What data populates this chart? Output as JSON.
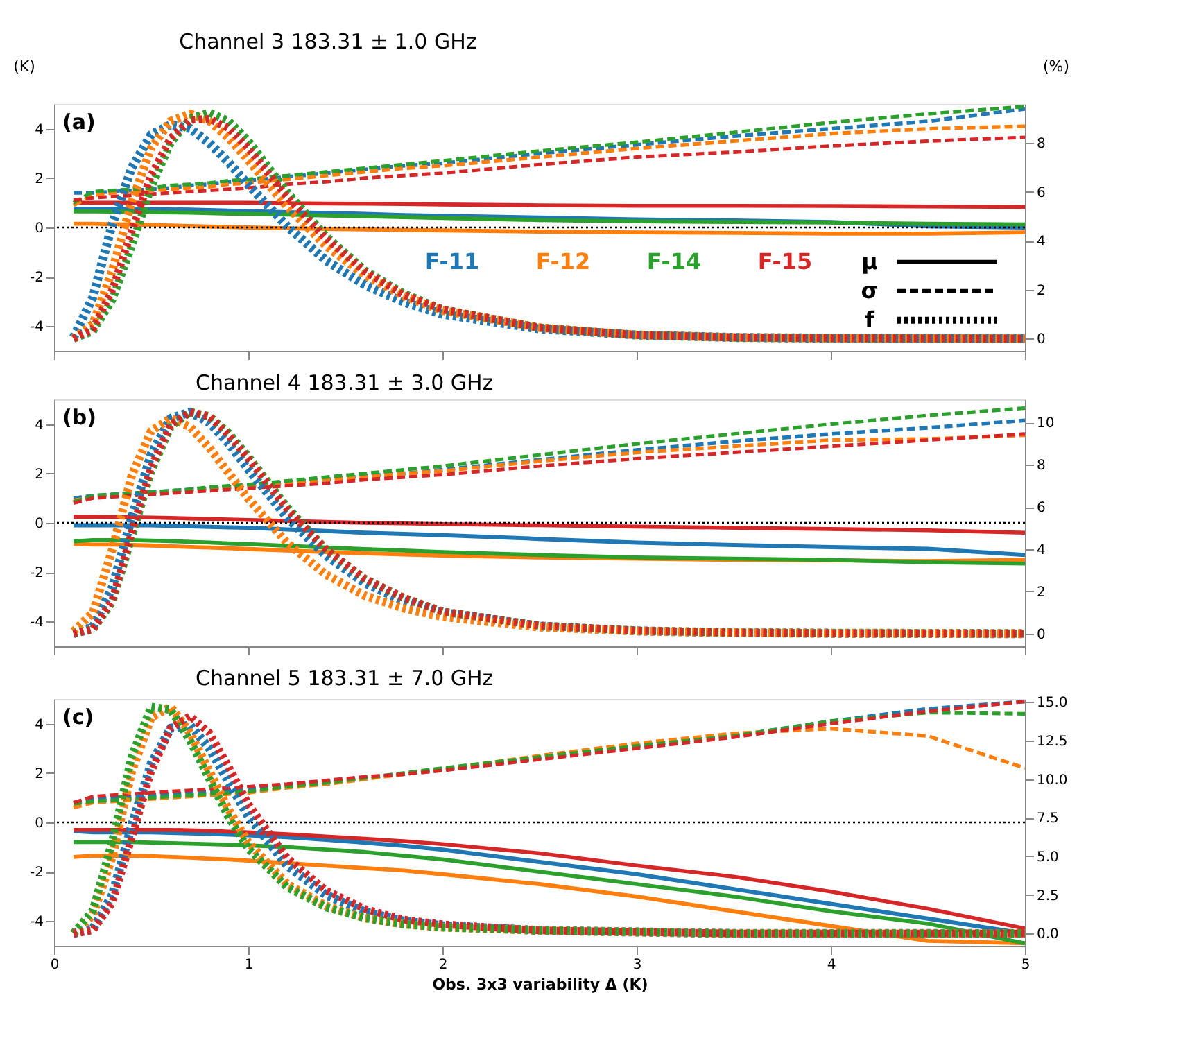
{
  "chart_data": [
    {
      "type": "line",
      "title": "Channel 3   183.31 ± 1.0 GHz",
      "ylabel": "(K)",
      "y2label": "(%)",
      "annotations": [
        "(a)",
        "μ",
        "σ",
        "f"
      ],
      "legend": "right",
      "tick_labels": "y",
      "x": [
        0.1,
        0.2,
        0.3,
        0.4,
        0.5,
        0.6,
        0.7,
        0.8,
        0.9,
        1.0,
        1.2,
        1.4,
        1.6,
        1.8,
        2.0,
        2.5,
        3.0,
        3.5,
        4.0,
        4.5,
        5.0
      ],
      "xlim": [
        0,
        5
      ],
      "xticks": [
        0,
        1,
        2,
        3,
        4,
        5
      ],
      "ylim": [
        -5,
        5
      ],
      "yticks": [
        -4,
        -2,
        0,
        2,
        4
      ],
      "y2lim": [
        -0.5,
        9.6
      ],
      "y2ticks": [
        0,
        2,
        4,
        6,
        8
      ],
      "ref_lines": [
        {
          "axis": "y",
          "value": 0,
          "color": "#000000",
          "line_style": "dotted"
        }
      ],
      "series": [
        {
          "name": "F-11",
          "color": "#1f77b4",
          "line_style": "solid",
          "values": [
            0.75,
            0.75,
            0.75,
            0.75,
            0.74,
            0.73,
            0.72,
            0.7,
            0.68,
            0.66,
            0.62,
            0.58,
            0.55,
            0.5,
            0.47,
            0.4,
            0.32,
            0.28,
            0.22,
            0.05,
            0.0
          ]
        },
        {
          "name": "F-12",
          "color": "#ff7f0e",
          "line_style": "solid",
          "values": [
            0.15,
            0.15,
            0.13,
            0.12,
            0.1,
            0.08,
            0.06,
            0.04,
            0.02,
            0,
            -0.03,
            -0.06,
            -0.08,
            -0.1,
            -0.12,
            -0.17,
            -0.2,
            -0.22,
            -0.25,
            -0.25,
            -0.2
          ]
        },
        {
          "name": "F-14",
          "color": "#2ca02c",
          "line_style": "solid",
          "values": [
            0.65,
            0.65,
            0.64,
            0.63,
            0.62,
            0.61,
            0.6,
            0.58,
            0.56,
            0.55,
            0.52,
            0.48,
            0.45,
            0.42,
            0.38,
            0.3,
            0.25,
            0.22,
            0.2,
            0.15,
            0.12
          ]
        },
        {
          "name": "F-15",
          "color": "#d62728",
          "line_style": "solid",
          "values": [
            1.0,
            1.0,
            1.0,
            1.0,
            1.0,
            1.0,
            1.0,
            1.0,
            1.0,
            1.0,
            0.98,
            0.97,
            0.96,
            0.95,
            0.93,
            0.9,
            0.88,
            0.88,
            0.87,
            0.85,
            0.83
          ]
        },
        {
          "color": "#1f77b4",
          "line_style": "dashed",
          "values": [
            1.4,
            1.4,
            1.45,
            1.5,
            1.55,
            1.6,
            1.7,
            1.75,
            1.85,
            1.9,
            2.05,
            2.2,
            2.35,
            2.5,
            2.6,
            3.0,
            3.35,
            3.7,
            4.0,
            4.3,
            4.8
          ]
        },
        {
          "color": "#ff7f0e",
          "line_style": "dashed",
          "values": [
            0.9,
            1.3,
            1.4,
            1.45,
            1.5,
            1.55,
            1.6,
            1.65,
            1.75,
            1.8,
            1.95,
            2.1,
            2.25,
            2.4,
            2.5,
            2.85,
            3.2,
            3.5,
            3.8,
            4.0,
            4.1
          ]
        },
        {
          "color": "#2ca02c",
          "line_style": "dashed",
          "values": [
            1.0,
            1.45,
            1.5,
            1.55,
            1.6,
            1.7,
            1.75,
            1.8,
            1.9,
            1.95,
            2.1,
            2.25,
            2.4,
            2.55,
            2.7,
            3.1,
            3.45,
            3.85,
            4.25,
            4.6,
            4.9
          ]
        },
        {
          "color": "#d62728",
          "line_style": "dashed",
          "values": [
            1.1,
            1.2,
            1.25,
            1.3,
            1.35,
            1.4,
            1.45,
            1.5,
            1.55,
            1.6,
            1.75,
            1.85,
            2.0,
            2.1,
            2.2,
            2.55,
            2.85,
            3.05,
            3.3,
            3.5,
            3.65
          ]
        },
        {
          "color": "#1f77b4",
          "line_style": "dotted",
          "axis": "y2",
          "values": [
            0.05,
            1.7,
            4.7,
            7.0,
            8.35,
            8.75,
            8.6,
            8.0,
            7.2,
            6.3,
            4.6,
            3.2,
            2.2,
            1.5,
            1.0,
            0.4,
            0.15,
            0.05,
            0.02,
            0.01,
            0
          ]
        },
        {
          "color": "#ff7f0e",
          "line_style": "dotted",
          "axis": "y2",
          "values": [
            0,
            0.6,
            2.8,
            5.6,
            7.8,
            8.9,
            9.2,
            8.9,
            8.2,
            7.3,
            5.4,
            3.8,
            2.6,
            1.75,
            1.15,
            0.45,
            0.15,
            0.05,
            0.02,
            0.01,
            0
          ]
        },
        {
          "color": "#2ca02c",
          "line_style": "dotted",
          "axis": "y2",
          "values": [
            0,
            0.3,
            1.6,
            3.8,
            6.2,
            8.0,
            9.0,
            9.25,
            8.9,
            8.1,
            6.0,
            4.2,
            2.8,
            1.85,
            1.2,
            0.45,
            0.15,
            0.05,
            0.02,
            0.01,
            0
          ]
        },
        {
          "color": "#d62728",
          "line_style": "dotted",
          "axis": "y2",
          "values": [
            0,
            0.4,
            2.0,
            4.4,
            6.7,
            8.2,
            8.95,
            9.0,
            8.6,
            7.8,
            5.8,
            4.1,
            2.75,
            1.8,
            1.2,
            0.45,
            0.15,
            0.05,
            0.02,
            0.01,
            0
          ]
        }
      ]
    },
    {
      "type": "line",
      "title": "Channel 4   183.31 ± 3.0 GHz",
      "annotations": [
        "(b)"
      ],
      "tick_labels": "y",
      "x": [
        0.1,
        0.2,
        0.3,
        0.4,
        0.5,
        0.6,
        0.7,
        0.8,
        0.9,
        1.0,
        1.2,
        1.4,
        1.6,
        1.8,
        2.0,
        2.5,
        3.0,
        3.5,
        4.0,
        4.5,
        5.0
      ],
      "xlim": [
        0,
        5
      ],
      "xticks": [
        0,
        1,
        2,
        3,
        4,
        5
      ],
      "ylim": [
        -5,
        5
      ],
      "yticks": [
        -4,
        -2,
        0,
        2,
        4
      ],
      "y2lim": [
        -0.6,
        11.1
      ],
      "y2ticks": [
        0,
        2,
        4,
        6,
        8,
        10
      ],
      "ref_lines": [
        {
          "axis": "y",
          "value": 0,
          "color": "#000000",
          "line_style": "dotted"
        }
      ],
      "series": [
        {
          "color": "#1f77b4",
          "line_style": "solid",
          "values": [
            -0.1,
            -0.1,
            -0.1,
            -0.1,
            -0.1,
            -0.12,
            -0.14,
            -0.16,
            -0.18,
            -0.2,
            -0.27,
            -0.33,
            -0.4,
            -0.45,
            -0.5,
            -0.65,
            -0.8,
            -0.9,
            -0.98,
            -1.05,
            -1.3
          ]
        },
        {
          "color": "#ff7f0e",
          "line_style": "solid",
          "values": [
            -0.85,
            -0.88,
            -0.88,
            -0.9,
            -0.92,
            -0.95,
            -0.98,
            -1.0,
            -1.03,
            -1.06,
            -1.12,
            -1.18,
            -1.23,
            -1.28,
            -1.32,
            -1.4,
            -1.45,
            -1.5,
            -1.52,
            -1.55,
            -1.5
          ]
        },
        {
          "color": "#2ca02c",
          "line_style": "solid",
          "values": [
            -0.75,
            -0.7,
            -0.7,
            -0.7,
            -0.72,
            -0.74,
            -0.77,
            -0.8,
            -0.83,
            -0.86,
            -0.93,
            -1.0,
            -1.06,
            -1.12,
            -1.18,
            -1.3,
            -1.4,
            -1.45,
            -1.5,
            -1.6,
            -1.65
          ]
        },
        {
          "color": "#d62728",
          "line_style": "solid",
          "values": [
            0.25,
            0.25,
            0.24,
            0.23,
            0.22,
            0.2,
            0.18,
            0.16,
            0.14,
            0.12,
            0.08,
            0.04,
            0,
            -0.02,
            -0.05,
            -0.1,
            -0.15,
            -0.2,
            -0.25,
            -0.3,
            -0.4
          ]
        },
        {
          "color": "#1f77b4",
          "line_style": "dashed",
          "values": [
            1.0,
            1.1,
            1.15,
            1.2,
            1.25,
            1.3,
            1.35,
            1.4,
            1.45,
            1.5,
            1.65,
            1.75,
            1.9,
            2.0,
            2.15,
            2.55,
            2.95,
            3.3,
            3.6,
            3.85,
            4.15
          ]
        },
        {
          "color": "#ff7f0e",
          "line_style": "dashed",
          "values": [
            0.9,
            1.05,
            1.1,
            1.15,
            1.2,
            1.25,
            1.3,
            1.35,
            1.4,
            1.45,
            1.6,
            1.75,
            1.85,
            2.0,
            2.1,
            2.5,
            2.85,
            3.1,
            3.35,
            3.4,
            3.55
          ]
        },
        {
          "color": "#2ca02c",
          "line_style": "dashed",
          "values": [
            0.85,
            1.1,
            1.15,
            1.2,
            1.25,
            1.3,
            1.35,
            1.45,
            1.5,
            1.55,
            1.7,
            1.85,
            2.0,
            2.15,
            2.3,
            2.75,
            3.2,
            3.6,
            4.0,
            4.35,
            4.65
          ]
        },
        {
          "color": "#d62728",
          "line_style": "dashed",
          "values": [
            0.8,
            1.0,
            1.05,
            1.1,
            1.15,
            1.2,
            1.25,
            1.3,
            1.35,
            1.4,
            1.5,
            1.6,
            1.75,
            1.85,
            1.95,
            2.3,
            2.6,
            2.85,
            3.1,
            3.35,
            3.6
          ]
        },
        {
          "color": "#1f77b4",
          "line_style": "dotted",
          "axis": "y2",
          "values": [
            0,
            0.3,
            2.2,
            5.5,
            8.5,
            10.2,
            10.5,
            10.0,
            9.0,
            7.8,
            5.5,
            3.7,
            2.4,
            1.55,
            1.0,
            0.35,
            0.13,
            0.05,
            0.02,
            0.01,
            0
          ]
        },
        {
          "color": "#ff7f0e",
          "line_style": "dotted",
          "axis": "y2",
          "values": [
            0.1,
            1.0,
            4.0,
            7.5,
            9.6,
            10.2,
            9.8,
            8.8,
            7.6,
            6.4,
            4.3,
            2.8,
            1.8,
            1.2,
            0.8,
            0.3,
            0.12,
            0.05,
            0.02,
            0.01,
            0
          ]
        },
        {
          "color": "#2ca02c",
          "line_style": "dotted",
          "axis": "y2",
          "values": [
            0,
            0.2,
            1.5,
            4.6,
            7.7,
            9.8,
            10.5,
            10.3,
            9.5,
            8.4,
            6.0,
            4.0,
            2.6,
            1.7,
            1.05,
            0.38,
            0.14,
            0.05,
            0.02,
            0.01,
            0
          ]
        },
        {
          "color": "#d62728",
          "line_style": "dotted",
          "axis": "y2",
          "values": [
            0,
            0.2,
            1.6,
            4.8,
            7.9,
            9.9,
            10.5,
            10.3,
            9.4,
            8.3,
            5.9,
            4.0,
            2.6,
            1.7,
            1.05,
            0.38,
            0.14,
            0.05,
            0.02,
            0.01,
            0
          ]
        }
      ]
    },
    {
      "type": "line",
      "title": "Channel 5   183.31 ± 7.0 GHz",
      "xlabel": "Obs. 3x3 variability Δ (K)",
      "annotations": [
        "(c)"
      ],
      "x": [
        0.1,
        0.2,
        0.3,
        0.4,
        0.5,
        0.6,
        0.7,
        0.8,
        0.9,
        1.0,
        1.2,
        1.4,
        1.6,
        1.8,
        2.0,
        2.5,
        3.0,
        3.5,
        4.0,
        4.5,
        5.0
      ],
      "xlim": [
        0,
        5
      ],
      "xticks": [
        0,
        1,
        2,
        3,
        4,
        5
      ],
      "ylim": [
        -5,
        5
      ],
      "yticks": [
        -4,
        -2,
        0,
        2,
        4
      ],
      "y2lim": [
        -0.8,
        15.2
      ],
      "y2ticks": [
        {
          "value": 0,
          "label": "0.0"
        },
        {
          "value": 2.5,
          "label": "2.5"
        },
        {
          "value": 5,
          "label": "5.0"
        },
        {
          "value": 7.5,
          "label": "7.5"
        },
        {
          "value": 10,
          "label": "10.0"
        },
        {
          "value": 12.5,
          "label": "12.5"
        },
        {
          "value": 15,
          "label": "15.0"
        }
      ],
      "ref_lines": [
        {
          "axis": "y",
          "value": 0,
          "color": "#000000",
          "line_style": "dotted"
        }
      ],
      "series": [
        {
          "color": "#1f77b4",
          "line_style": "solid",
          "values": [
            -0.35,
            -0.4,
            -0.4,
            -0.4,
            -0.4,
            -0.42,
            -0.44,
            -0.46,
            -0.49,
            -0.52,
            -0.6,
            -0.7,
            -0.82,
            -0.95,
            -1.1,
            -1.6,
            -2.1,
            -2.7,
            -3.3,
            -3.9,
            -4.5
          ]
        },
        {
          "color": "#ff7f0e",
          "line_style": "solid",
          "values": [
            -1.4,
            -1.35,
            -1.35,
            -1.35,
            -1.37,
            -1.4,
            -1.43,
            -1.47,
            -1.5,
            -1.55,
            -1.65,
            -1.75,
            -1.85,
            -1.95,
            -2.1,
            -2.5,
            -3.0,
            -3.6,
            -4.2,
            -4.8,
            -4.9
          ]
        },
        {
          "color": "#2ca02c",
          "line_style": "solid",
          "values": [
            -0.8,
            -0.8,
            -0.8,
            -0.8,
            -0.82,
            -0.84,
            -0.86,
            -0.88,
            -0.9,
            -0.93,
            -1.0,
            -1.1,
            -1.2,
            -1.35,
            -1.5,
            -2.0,
            -2.5,
            -3.0,
            -3.6,
            -4.1,
            -4.9
          ]
        },
        {
          "color": "#d62728",
          "line_style": "solid",
          "values": [
            -0.3,
            -0.3,
            -0.3,
            -0.3,
            -0.3,
            -0.3,
            -0.32,
            -0.34,
            -0.37,
            -0.4,
            -0.48,
            -0.57,
            -0.66,
            -0.76,
            -0.88,
            -1.25,
            -1.75,
            -2.2,
            -2.8,
            -3.5,
            -4.3
          ]
        },
        {
          "color": "#1f77b4",
          "line_style": "dashed",
          "values": [
            0.8,
            0.95,
            1.0,
            1.05,
            1.1,
            1.15,
            1.2,
            1.25,
            1.3,
            1.35,
            1.5,
            1.65,
            1.8,
            1.95,
            2.15,
            2.6,
            3.1,
            3.5,
            4.1,
            4.6,
            4.9
          ]
        },
        {
          "color": "#ff7f0e",
          "line_style": "dashed",
          "values": [
            0.6,
            0.8,
            0.85,
            0.9,
            0.95,
            1.0,
            1.05,
            1.1,
            1.15,
            1.2,
            1.4,
            1.55,
            1.75,
            1.95,
            2.15,
            2.7,
            3.2,
            3.6,
            3.8,
            3.5,
            2.2
          ]
        },
        {
          "color": "#2ca02c",
          "line_style": "dashed",
          "values": [
            0.75,
            0.85,
            0.9,
            0.95,
            1.0,
            1.05,
            1.1,
            1.15,
            1.2,
            1.25,
            1.45,
            1.6,
            1.8,
            2.0,
            2.2,
            2.65,
            3.1,
            3.5,
            4.1,
            4.45,
            4.4
          ]
        },
        {
          "color": "#d62728",
          "line_style": "dashed",
          "values": [
            0.8,
            1.05,
            1.1,
            1.15,
            1.2,
            1.25,
            1.3,
            1.35,
            1.4,
            1.45,
            1.55,
            1.7,
            1.85,
            1.95,
            2.1,
            2.55,
            3.0,
            3.45,
            4.0,
            4.5,
            4.9
          ]
        },
        {
          "color": "#1f77b4",
          "line_style": "dotted",
          "axis": "y2",
          "values": [
            0,
            0.3,
            2.5,
            7.0,
            11.0,
            13.3,
            13.5,
            12.0,
            9.8,
            7.6,
            4.4,
            2.5,
            1.4,
            0.8,
            0.5,
            0.2,
            0.1,
            0,
            0,
            0,
            0
          ]
        },
        {
          "color": "#ff7f0e",
          "line_style": "dotted",
          "axis": "y2",
          "values": [
            0,
            1.2,
            5.0,
            10.5,
            14.0,
            14.7,
            13.0,
            10.5,
            8.0,
            5.9,
            3.2,
            1.8,
            1.0,
            0.6,
            0.4,
            0.2,
            0.1,
            0,
            0,
            0,
            0
          ]
        },
        {
          "color": "#2ca02c",
          "line_style": "dotted",
          "axis": "y2",
          "values": [
            0,
            1.5,
            6.0,
            11.5,
            14.7,
            14.5,
            12.5,
            10.0,
            7.5,
            5.5,
            3.0,
            1.7,
            1.0,
            0.6,
            0.4,
            0.2,
            0.1,
            0,
            0,
            0,
            0
          ]
        },
        {
          "color": "#d62728",
          "line_style": "dotted",
          "axis": "y2",
          "values": [
            0,
            0.2,
            2.0,
            6.2,
            10.5,
            13.3,
            14.1,
            13.0,
            10.8,
            8.4,
            4.9,
            2.8,
            1.6,
            0.9,
            0.6,
            0.2,
            0.1,
            0,
            0,
            0,
            0
          ]
        }
      ]
    }
  ]
}
